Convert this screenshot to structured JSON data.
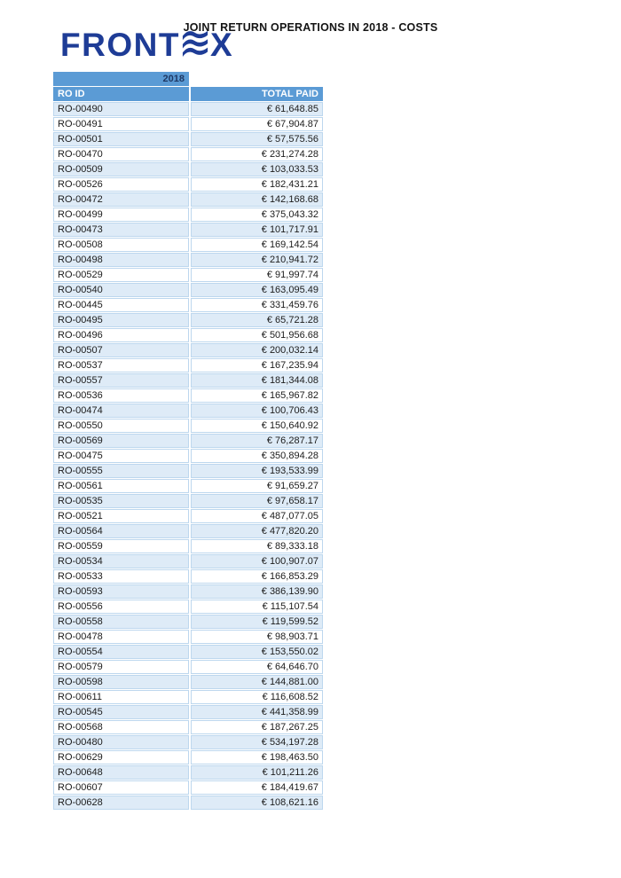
{
  "page": {
    "title": "JOINT RETURN OPERATIONS IN 2018 - COSTS"
  },
  "logo": {
    "name": "FRONTEX",
    "text_prefix": "FRONT",
    "text_suffix": "X",
    "wave_icon": "frontex-wave-e-icon",
    "color": "#1E3C96"
  },
  "table": {
    "year_label": "2018",
    "columns": [
      "RO ID",
      "TOTAL PAID"
    ],
    "colors": {
      "header_bg": "#5B9BD5",
      "header_text": "#FFFFFF",
      "year_text": "#1F3864",
      "band_fill": "#DEEBF7",
      "cell_border": "#BDD7EE"
    },
    "rows": [
      {
        "id": "RO-00490",
        "total_paid": "€ 61,648.85"
      },
      {
        "id": "RO-00491",
        "total_paid": "€ 67,904.87"
      },
      {
        "id": "RO-00501",
        "total_paid": "€ 57,575.56"
      },
      {
        "id": "RO-00470",
        "total_paid": "€ 231,274.28"
      },
      {
        "id": "RO-00509",
        "total_paid": "€ 103,033.53"
      },
      {
        "id": "RO-00526",
        "total_paid": "€ 182,431.21"
      },
      {
        "id": "RO-00472",
        "total_paid": "€ 142,168.68"
      },
      {
        "id": "RO-00499",
        "total_paid": "€ 375,043.32"
      },
      {
        "id": "RO-00473",
        "total_paid": "€ 101,717.91"
      },
      {
        "id": "RO-00508",
        "total_paid": "€ 169,142.54"
      },
      {
        "id": "RO-00498",
        "total_paid": "€ 210,941.72"
      },
      {
        "id": "RO-00529",
        "total_paid": "€ 91,997.74"
      },
      {
        "id": "RO-00540",
        "total_paid": "€ 163,095.49"
      },
      {
        "id": "RO-00445",
        "total_paid": "€ 331,459.76"
      },
      {
        "id": "RO-00495",
        "total_paid": "€ 65,721.28"
      },
      {
        "id": "RO-00496",
        "total_paid": "€ 501,956.68"
      },
      {
        "id": "RO-00507",
        "total_paid": "€ 200,032.14"
      },
      {
        "id": "RO-00537",
        "total_paid": "€ 167,235.94"
      },
      {
        "id": "RO-00557",
        "total_paid": "€ 181,344.08"
      },
      {
        "id": "RO-00536",
        "total_paid": "€ 165,967.82"
      },
      {
        "id": "RO-00474",
        "total_paid": "€ 100,706.43"
      },
      {
        "id": "RO-00550",
        "total_paid": "€ 150,640.92"
      },
      {
        "id": "RO-00569",
        "total_paid": "€ 76,287.17"
      },
      {
        "id": "RO-00475",
        "total_paid": "€ 350,894.28"
      },
      {
        "id": "RO-00555",
        "total_paid": "€ 193,533.99"
      },
      {
        "id": "RO-00561",
        "total_paid": "€ 91,659.27"
      },
      {
        "id": "RO-00535",
        "total_paid": "€ 97,658.17"
      },
      {
        "id": "RO-00521",
        "total_paid": "€ 487,077.05"
      },
      {
        "id": "RO-00564",
        "total_paid": "€ 477,820.20"
      },
      {
        "id": "RO-00559",
        "total_paid": "€ 89,333.18"
      },
      {
        "id": "RO-00534",
        "total_paid": "€ 100,907.07"
      },
      {
        "id": "RO-00533",
        "total_paid": "€ 166,853.29"
      },
      {
        "id": "RO-00593",
        "total_paid": "€ 386,139.90"
      },
      {
        "id": "RO-00556",
        "total_paid": "€ 115,107.54"
      },
      {
        "id": "RO-00558",
        "total_paid": "€ 119,599.52"
      },
      {
        "id": "RO-00478",
        "total_paid": "€ 98,903.71"
      },
      {
        "id": "RO-00554",
        "total_paid": "€ 153,550.02"
      },
      {
        "id": "RO-00579",
        "total_paid": "€ 64,646.70"
      },
      {
        "id": "RO-00598",
        "total_paid": "€ 144,881.00"
      },
      {
        "id": "RO-00611",
        "total_paid": "€ 116,608.52"
      },
      {
        "id": "RO-00545",
        "total_paid": "€ 441,358.99"
      },
      {
        "id": "RO-00568",
        "total_paid": "€ 187,267.25"
      },
      {
        "id": "RO-00480",
        "total_paid": "€ 534,197.28"
      },
      {
        "id": "RO-00629",
        "total_paid": "€ 198,463.50"
      },
      {
        "id": "RO-00648",
        "total_paid": "€ 101,211.26"
      },
      {
        "id": "RO-00607",
        "total_paid": "€ 184,419.67"
      },
      {
        "id": "RO-00628",
        "total_paid": "€ 108,621.16"
      }
    ]
  }
}
